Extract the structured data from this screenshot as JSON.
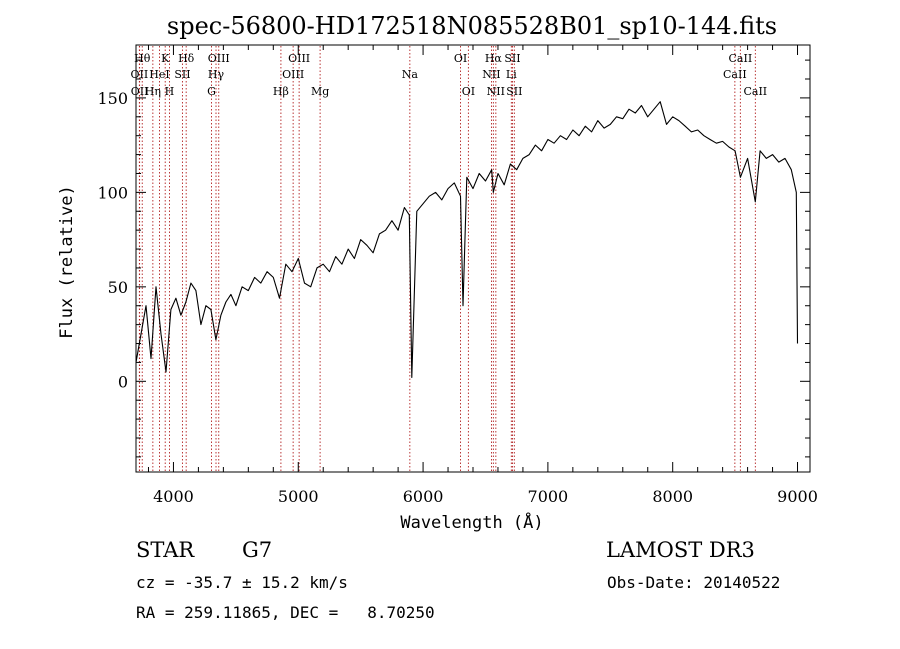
{
  "chart_data": {
    "type": "line",
    "title": "spec-56800-HD172518N085528B01_sp10-144.fits",
    "xlabel": "Wavelength (Å)",
    "ylabel": "Flux (relative)",
    "xlim": [
      3700,
      9100
    ],
    "ylim": [
      -48,
      178
    ],
    "xticks": [
      4000,
      5000,
      6000,
      7000,
      8000,
      9000
    ],
    "yticks": [
      0,
      50,
      100,
      150
    ],
    "grid": false,
    "line_color": "#000000",
    "marker_color": "#b22222",
    "series": [
      {
        "name": "flux",
        "x": [
          3700,
          3740,
          3780,
          3820,
          3860,
          3900,
          3940,
          3980,
          4020,
          4060,
          4100,
          4140,
          4180,
          4220,
          4260,
          4300,
          4340,
          4380,
          4420,
          4460,
          4500,
          4550,
          4600,
          4650,
          4700,
          4750,
          4800,
          4850,
          4900,
          4950,
          5000,
          5050,
          5100,
          5150,
          5200,
          5250,
          5300,
          5350,
          5400,
          5450,
          5500,
          5550,
          5600,
          5650,
          5700,
          5750,
          5800,
          5850,
          5890,
          5910,
          5950,
          6000,
          6050,
          6100,
          6150,
          6200,
          6250,
          6300,
          6320,
          6350,
          6400,
          6450,
          6500,
          6550,
          6563,
          6600,
          6650,
          6700,
          6750,
          6800,
          6850,
          6900,
          6950,
          7000,
          7050,
          7100,
          7150,
          7200,
          7250,
          7300,
          7350,
          7400,
          7450,
          7500,
          7550,
          7600,
          7650,
          7700,
          7750,
          7800,
          7850,
          7900,
          7950,
          8000,
          8050,
          8100,
          8150,
          8200,
          8250,
          8300,
          8350,
          8400,
          8450,
          8500,
          8542,
          8600,
          8662,
          8700,
          8750,
          8800,
          8850,
          8900,
          8950,
          8990,
          9000
        ],
        "values": [
          10,
          25,
          40,
          12,
          50,
          25,
          5,
          38,
          44,
          35,
          42,
          52,
          48,
          30,
          40,
          38,
          22,
          35,
          42,
          46,
          40,
          50,
          48,
          55,
          52,
          58,
          55,
          44,
          62,
          58,
          65,
          52,
          50,
          60,
          62,
          58,
          66,
          62,
          70,
          65,
          75,
          72,
          68,
          78,
          80,
          85,
          80,
          92,
          88,
          2,
          90,
          94,
          98,
          100,
          96,
          102,
          105,
          98,
          40,
          108,
          102,
          110,
          106,
          112,
          100,
          110,
          104,
          115,
          112,
          118,
          120,
          125,
          122,
          128,
          126,
          130,
          128,
          133,
          130,
          135,
          132,
          138,
          134,
          136,
          140,
          139,
          144,
          142,
          146,
          140,
          144,
          148,
          136,
          140,
          138,
          135,
          132,
          133,
          130,
          128,
          126,
          127,
          124,
          122,
          108,
          118,
          95,
          122,
          118,
          120,
          116,
          118,
          112,
          100,
          20
        ]
      }
    ],
    "line_markers": [
      {
        "label": "OII",
        "x": 3727,
        "row": 2
      },
      {
        "label": "OII",
        "x": 3729,
        "row": 3
      },
      {
        "label": "Hθ",
        "x": 3750,
        "row": 1
      },
      {
        "label": "Hη",
        "x": 3835,
        "row": 3
      },
      {
        "label": "HeI",
        "x": 3888,
        "row": 2
      },
      {
        "label": "K",
        "x": 3934,
        "row": 1
      },
      {
        "label": "H",
        "x": 3968,
        "row": 3
      },
      {
        "label": "SII",
        "x": 4072,
        "row": 2
      },
      {
        "label": "Hδ",
        "x": 4102,
        "row": 1
      },
      {
        "label": "G",
        "x": 4305,
        "row": 3
      },
      {
        "label": "Hγ",
        "x": 4341,
        "row": 2
      },
      {
        "label": "OIII",
        "x": 4363,
        "row": 1
      },
      {
        "label": "Hβ",
        "x": 4861,
        "row": 3
      },
      {
        "label": "OIII",
        "x": 4959,
        "row": 2
      },
      {
        "label": "OIII",
        "x": 5007,
        "row": 1
      },
      {
        "label": "Mg",
        "x": 5175,
        "row": 3
      },
      {
        "label": "Na",
        "x": 5894,
        "row": 2
      },
      {
        "label": "OI",
        "x": 6300,
        "row": 1
      },
      {
        "label": "OI",
        "x": 6363,
        "row": 3
      },
      {
        "label": "NII",
        "x": 6548,
        "row": 2
      },
      {
        "label": "Hα",
        "x": 6563,
        "row": 1
      },
      {
        "label": "NII",
        "x": 6583,
        "row": 3
      },
      {
        "label": "Li",
        "x": 6707,
        "row": 2
      },
      {
        "label": "SII",
        "x": 6716,
        "row": 1
      },
      {
        "label": "SII",
        "x": 6731,
        "row": 3
      },
      {
        "label": "CaII",
        "x": 8498,
        "row": 2
      },
      {
        "label": "CaII",
        "x": 8542,
        "row": 1
      },
      {
        "label": "CaII",
        "x": 8662,
        "row": 3
      }
    ]
  },
  "info": {
    "class": "STAR",
    "subclass": "G7",
    "survey": "LAMOST DR3",
    "cz": "cz = -35.7 ± 15.2 km/s",
    "obs_date": "Obs-Date: 20140522",
    "coords": "RA = 259.11865, DEC =   8.70250"
  }
}
